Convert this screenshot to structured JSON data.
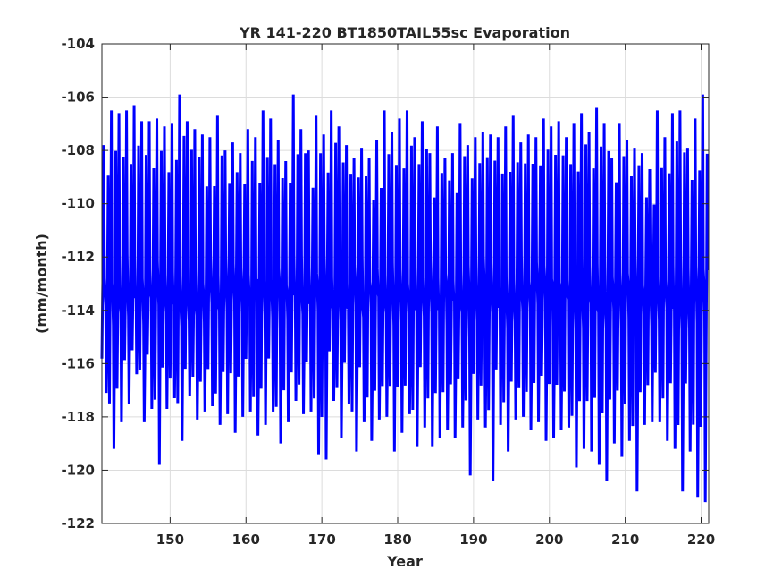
{
  "chart_data": {
    "type": "line",
    "title": "YR 141-220 BT1850TAIL55sc Evaporation",
    "xlabel": "Year",
    "ylabel": "(mm/month)",
    "xlim": [
      141,
      221
    ],
    "ylim": [
      -122,
      -104
    ],
    "xticks": [
      150,
      160,
      170,
      180,
      190,
      200,
      210,
      220
    ],
    "yticks": [
      -122,
      -120,
      -118,
      -116,
      -114,
      -112,
      -110,
      -108,
      -106,
      -104
    ],
    "grid": true,
    "series": [
      {
        "color": "#0000ff",
        "sampling": "monthly",
        "x_start": 141.0,
        "x_step": 0.0833,
        "seasonal_cycle": [
          -117.1,
          -114.0,
          -111.6,
          -108.0,
          -112.5,
          -113.4,
          -114.2,
          -119.0,
          -115.9,
          -112.6,
          -109.2,
          -113.0
        ],
        "annual_max": [
          -107.8,
          -106.5,
          -106.6,
          -106.5,
          -106.3,
          -106.9,
          -106.9,
          -106.8,
          -107.1,
          -107.0,
          -105.9,
          -106.9,
          -107.2,
          -107.4,
          -107.5,
          -106.7,
          -108.0,
          -107.7,
          -108.1,
          -107.2,
          -107.5,
          -106.5,
          -106.8,
          -107.6,
          -108.4,
          -105.9,
          -107.2,
          -108.0,
          -106.7,
          -107.4,
          -106.5,
          -107.1,
          -107.8,
          -108.3,
          -107.9,
          -108.3,
          -107.6,
          -106.5,
          -107.3,
          -106.8,
          -106.5,
          -107.5,
          -106.9,
          -108.1,
          -107.1,
          -108.3,
          -108.1,
          -107.0,
          -107.8,
          -107.5,
          -107.3,
          -107.4,
          -107.5,
          -107.1,
          -106.7,
          -107.7,
          -107.4,
          -107.5,
          -106.8,
          -107.1,
          -106.9,
          -107.5,
          -107.0,
          -106.6,
          -107.3,
          -106.4,
          -107.0,
          -108.3,
          -107.0,
          -107.6,
          -107.9,
          -108.1,
          -108.7,
          -106.5,
          -107.5,
          -106.6,
          -106.5,
          -107.9,
          -106.8,
          -105.9
        ],
        "annual_min": [
          -117.1,
          -119.2,
          -118.2,
          -117.5,
          -116.4,
          -118.2,
          -117.7,
          -119.8,
          -117.7,
          -117.3,
          -118.9,
          -117.2,
          -118.1,
          -117.8,
          -117.6,
          -118.3,
          -117.9,
          -118.6,
          -118.0,
          -117.8,
          -118.7,
          -118.3,
          -117.8,
          -119.0,
          -118.2,
          -117.4,
          -117.9,
          -117.8,
          -119.4,
          -119.6,
          -117.4,
          -118.8,
          -117.5,
          -119.3,
          -118.2,
          -118.9,
          -118.1,
          -118.0,
          -119.3,
          -118.6,
          -117.9,
          -119.1,
          -118.4,
          -119.1,
          -118.8,
          -118.5,
          -118.8,
          -118.4,
          -120.2,
          -118.1,
          -118.4,
          -120.4,
          -118.3,
          -119.3,
          -118.1,
          -118.0,
          -118.5,
          -118.2,
          -118.9,
          -118.8,
          -118.5,
          -118.4,
          -119.9,
          -119.2,
          -119.3,
          -119.8,
          -120.4,
          -119.0,
          -119.5,
          -118.9,
          -120.8,
          -118.3,
          -118.2,
          -118.2,
          -118.9,
          -119.2,
          -120.8,
          -119.3,
          -121.0,
          -121.2
        ]
      }
    ]
  }
}
